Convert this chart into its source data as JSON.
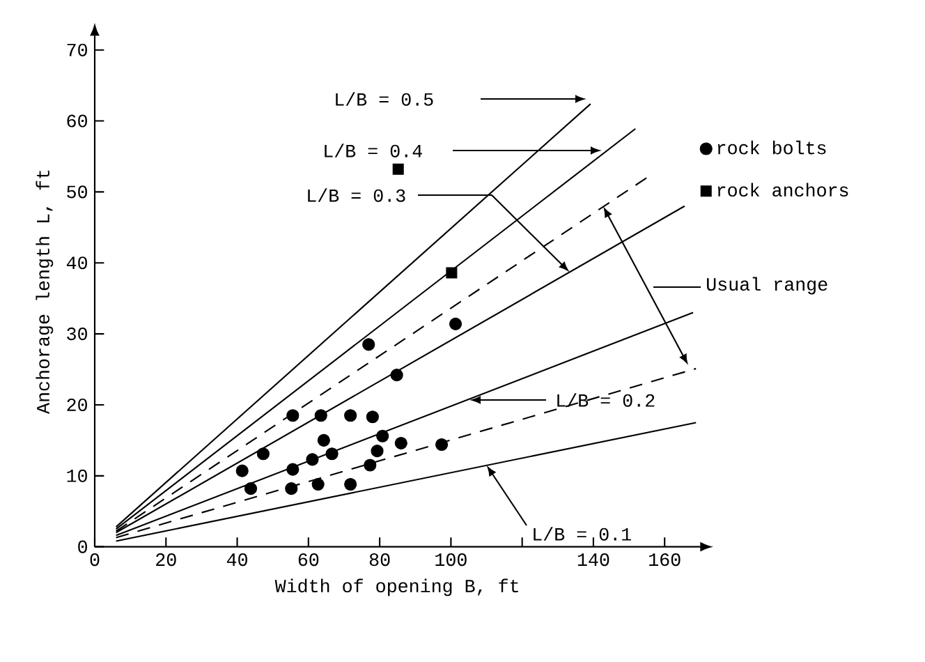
{
  "chart_data": {
    "type": "scatter",
    "xlabel": "Width of opening B, ft",
    "ylabel": "Anchorage length L, ft",
    "xlim": [
      0,
      170
    ],
    "ylim": [
      0,
      72
    ],
    "xticks": [
      0,
      20,
      40,
      60,
      80,
      100,
      {
        "value": 120,
        "label": null
      },
      140,
      160
    ],
    "yticks": [
      0,
      10,
      20,
      30,
      40,
      50,
      60,
      70
    ],
    "legend": "top right",
    "grid": false,
    "series": [
      {
        "type": "line",
        "color": "#000000",
        "line_style": "solid",
        "marker": "none",
        "x": [
          6,
          139.2
        ],
        "values": [
          2.8,
          62.4
        ]
      },
      {
        "type": "line",
        "color": "#000000",
        "line_style": "solid",
        "marker": "none",
        "x": [
          6,
          151.8
        ],
        "values": [
          2.5,
          58.9
        ]
      },
      {
        "type": "line",
        "color": "#000000",
        "line_style": "dashed",
        "marker": "none",
        "x": [
          6,
          155
        ],
        "values": [
          2.2,
          52
        ]
      },
      {
        "type": "line",
        "color": "#000000",
        "line_style": "solid",
        "marker": "none",
        "x": [
          6,
          165.6
        ],
        "values": [
          2,
          48
        ]
      },
      {
        "type": "line",
        "color": "#000000",
        "line_style": "solid",
        "marker": "none",
        "x": [
          6,
          168
        ],
        "values": [
          1.6,
          33
        ]
      },
      {
        "type": "line",
        "color": "#000000",
        "line_style": "dashed",
        "marker": "none",
        "x": [
          6,
          168.8
        ],
        "values": [
          1.3,
          25.1
        ]
      },
      {
        "type": "line",
        "color": "#000000",
        "line_style": "solid",
        "marker": "none",
        "x": [
          6,
          168.8
        ],
        "values": [
          0.8,
          17.5
        ]
      },
      {
        "name": "rock bolts",
        "color": "#000000",
        "marker": "circle",
        "x": [
          76.9,
          101.3,
          84.8,
          55.6,
          63.5,
          71.8,
          78,
          47.3,
          41.4,
          43.8,
          55.6,
          55.2,
          61.1,
          64.3,
          66.6,
          62.7,
          71.8,
          80.8,
          79.3,
          77.3,
          86,
          97.4
        ],
        "values": [
          28.5,
          31.4,
          24.2,
          18.5,
          18.5,
          18.5,
          18.3,
          13.1,
          10.7,
          8.2,
          10.9,
          8.2,
          12.3,
          15,
          13.1,
          8.8,
          8.8,
          15.6,
          13.5,
          11.5,
          14.6,
          14.4
        ]
      },
      {
        "name": "rock anchors",
        "color": "#000000",
        "marker": "square",
        "x": [
          85.2,
          100.2
        ],
        "values": [
          53.2,
          38.6
        ]
      }
    ],
    "annotations": [
      "L/B = 0.5",
      "L/B = 0.4",
      {
        "text": "L/B = 0.3",
        "x": 133.3,
        "y": 38.7
      },
      "Usual range",
      "L/B = 0.2",
      {
        "text": "L/B = 0.1",
        "x": 110,
        "y": 11.5
      }
    ]
  }
}
